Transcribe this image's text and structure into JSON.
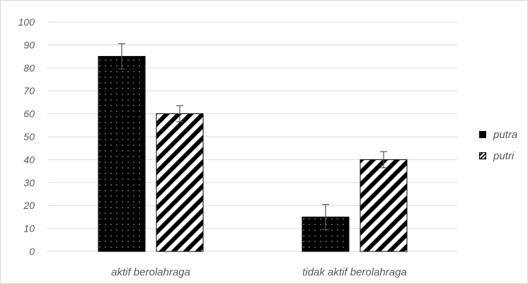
{
  "chart_data": {
    "type": "bar",
    "categories": [
      "aktif berolahraga",
      "tidak aktif berolahraga"
    ],
    "series": [
      {
        "name": "putra",
        "values": [
          85,
          15
        ],
        "error": [
          5.5,
          5.5
        ],
        "pattern": "dots"
      },
      {
        "name": "putri",
        "values": [
          60,
          40
        ],
        "error": [
          3.5,
          3.5
        ],
        "pattern": "diagonal-stripes"
      }
    ],
    "title": "",
    "xlabel": "",
    "ylabel": "",
    "ylim": [
      0,
      100
    ],
    "yticks": [
      0,
      10,
      20,
      30,
      40,
      50,
      60,
      70,
      80,
      90,
      100
    ],
    "grid": true,
    "legend_position": "right",
    "colors": {
      "bar": "#000000",
      "grid": "#d9d9d9",
      "text": "#595959"
    }
  }
}
